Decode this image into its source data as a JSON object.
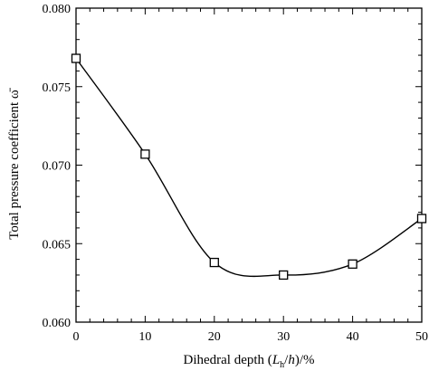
{
  "chart_data": {
    "type": "line",
    "xlabel_parts": [
      "Dihedral depth (",
      "L",
      "h",
      "/",
      "h",
      ")/%"
    ],
    "ylabel": "Total pressure coefficient ω̄",
    "xlim": [
      0,
      50
    ],
    "ylim": [
      0.06,
      0.08
    ],
    "x_ticks": [
      "0",
      "10",
      "20",
      "30",
      "40",
      "50"
    ],
    "y_ticks": [
      "0.060",
      "0.065",
      "0.070",
      "0.075",
      "0.080"
    ],
    "grid": false,
    "series": [
      {
        "x": [
          0,
          10,
          20,
          30,
          40,
          50
        ],
        "y": [
          0.0768,
          0.0707,
          0.0638,
          0.063,
          0.0637,
          0.0666
        ],
        "marker": "square-open",
        "color": "#000000"
      }
    ]
  }
}
